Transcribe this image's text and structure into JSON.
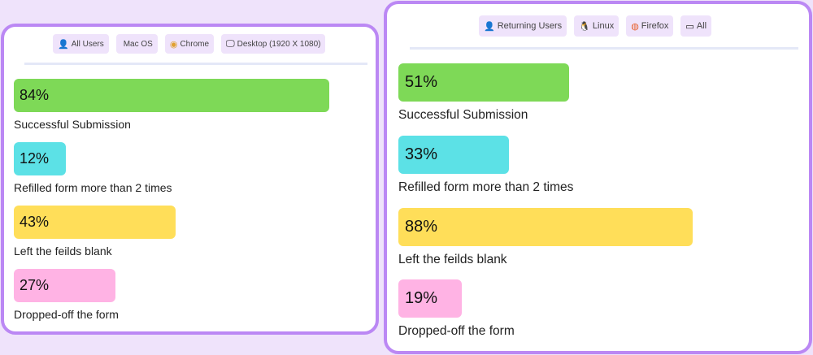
{
  "panels": [
    {
      "tags": [
        {
          "icon": "user-icon",
          "label": "All Users"
        },
        {
          "icon": "apple-icon",
          "label": "Mac OS"
        },
        {
          "icon": "chrome-icon",
          "label": "Chrome"
        },
        {
          "icon": "desktop-icon",
          "label": "Desktop (1920 X 1080)"
        }
      ],
      "metrics": [
        {
          "value": "84%",
          "percent": 84,
          "label": "Successful Submission",
          "color": "#7ed957"
        },
        {
          "value": "12%",
          "percent": 12,
          "label": "Refilled form more than 2 times",
          "color": "#5ce1e6"
        },
        {
          "value": "43%",
          "percent": 43,
          "label": "Left the feilds blank",
          "color": "#ffde59"
        },
        {
          "value": "27%",
          "percent": 27,
          "label": "Dropped-off the form",
          "color": "#ffb3e4"
        }
      ]
    },
    {
      "tags": [
        {
          "icon": "user-icon",
          "label": "Returning Users"
        },
        {
          "icon": "linux-icon",
          "label": "Linux"
        },
        {
          "icon": "firefox-icon",
          "label": "Firefox"
        },
        {
          "icon": "devices-icon",
          "label": "All"
        }
      ],
      "metrics": [
        {
          "value": "51%",
          "percent": 51,
          "label": "Successful Submission",
          "color": "#7ed957"
        },
        {
          "value": "33%",
          "percent": 33,
          "label": "Refilled form more than 2 times",
          "color": "#5ce1e6"
        },
        {
          "value": "88%",
          "percent": 88,
          "label": "Left the feilds blank",
          "color": "#ffde59"
        },
        {
          "value": "19%",
          "percent": 19,
          "label": "Dropped-off the form",
          "color": "#ffb3e4"
        }
      ]
    }
  ]
}
